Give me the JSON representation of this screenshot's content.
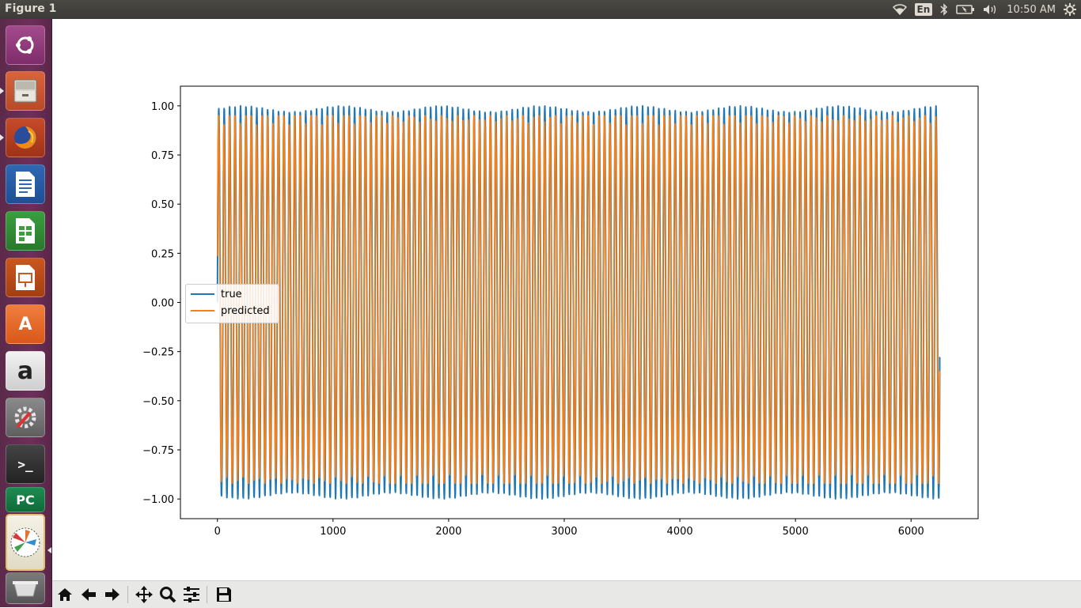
{
  "window": {
    "title": "Figure 1"
  },
  "tray": {
    "language": "En",
    "time": "10:50 AM",
    "icons": [
      "wifi-icon",
      "bluetooth-icon",
      "battery-icon",
      "volume-icon",
      "settings-gear-icon"
    ]
  },
  "launcher": {
    "items": [
      {
        "name": "ubuntu-dash",
        "icon": "ubuntu-logo-icon"
      },
      {
        "name": "files",
        "icon": "file-cabinet-icon"
      },
      {
        "name": "firefox",
        "icon": "firefox-icon"
      },
      {
        "name": "writer",
        "icon": "libreoffice-writer-icon"
      },
      {
        "name": "calc",
        "icon": "libreoffice-calc-icon"
      },
      {
        "name": "impress",
        "icon": "libreoffice-impress-icon"
      },
      {
        "name": "software-center",
        "icon": "software-center-icon"
      },
      {
        "name": "amazon",
        "icon": "amazon-icon"
      },
      {
        "name": "system-settings",
        "icon": "settings-wrench-icon"
      },
      {
        "name": "terminal",
        "icon": "terminal-icon"
      },
      {
        "name": "pycharm",
        "icon": "pycharm-icon"
      },
      {
        "name": "matplotlib-figure",
        "icon": "matplotlib-icon"
      },
      {
        "name": "trash",
        "icon": "trash-icon"
      }
    ],
    "labels": {
      "amazon": "a",
      "pycharm": "PC",
      "software-center": "A",
      "terminal": ">_"
    }
  },
  "toolbar": {
    "buttons": [
      "home-icon",
      "back-arrow-icon",
      "forward-arrow-icon",
      "pan-move-icon",
      "zoom-magnifier-icon",
      "configure-subplots-icon",
      "save-floppy-icon"
    ]
  },
  "chart_data": {
    "type": "line",
    "title": "",
    "xlabel": "",
    "ylabel": "",
    "xlim": [
      -320,
      6580
    ],
    "ylim": [
      -1.1,
      1.1
    ],
    "xticks": [
      0,
      1000,
      2000,
      3000,
      4000,
      5000,
      6000
    ],
    "xtick_labels": [
      "0",
      "1000",
      "2000",
      "3000",
      "4000",
      "5000",
      "6000"
    ],
    "yticks": [
      1.0,
      0.75,
      0.5,
      0.25,
      0.0,
      -0.25,
      -0.5,
      -0.75,
      -1.0
    ],
    "ytick_labels": [
      "1.00",
      "0.75",
      "0.50",
      "0.25",
      "0.00",
      "−0.25",
      "−0.50",
      "−0.75",
      "−1.00"
    ],
    "grid": false,
    "legend_placement": "center-left",
    "series": [
      {
        "name": "true",
        "color": "#1f77b4",
        "x_start": 0,
        "x_end": 6250,
        "pattern": "sinusoid",
        "amplitude": 1.0,
        "period": 47,
        "end_value": -0.28
      },
      {
        "name": "predicted",
        "color": "#ff7f0e",
        "x_start": 0,
        "x_end": 6250,
        "pattern": "sinusoid",
        "amplitude_min": -0.92,
        "amplitude_max": 0.95,
        "period": 47,
        "end_value": -0.35
      }
    ]
  }
}
